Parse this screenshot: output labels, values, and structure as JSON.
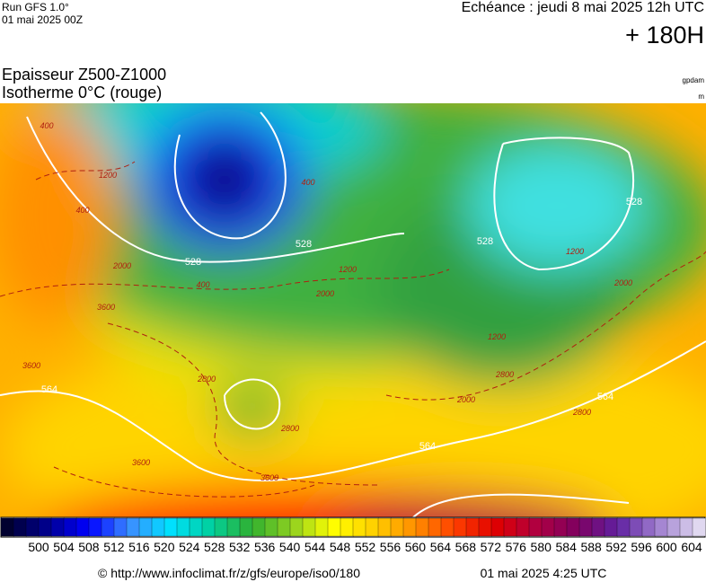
{
  "header": {
    "run": "Run GFS 1.0°",
    "run_date": "01 mai 2025 00Z",
    "valid": "Echéance : jeudi 8 mai 2025 12h UTC",
    "lead": "+ 180H",
    "title": "Epaisseur Z500-Z1000",
    "subtitle": "Isotherme 0°C (rouge)",
    "unit_thickness": "gpdam",
    "unit_iso": "m"
  },
  "map": {
    "thickness_labels": [
      "528",
      "528",
      "528",
      "528",
      "564",
      "564",
      "564"
    ],
    "isotherm_labels": [
      "400",
      "400",
      "400",
      "400",
      "1200",
      "1200",
      "1200",
      "1200",
      "2000",
      "2000",
      "2000",
      "2000",
      "2800",
      "2800",
      "2800",
      "2800",
      "3600",
      "3600",
      "3600",
      "3600"
    ]
  },
  "colorbar": {
    "ticks": [
      500,
      504,
      508,
      512,
      516,
      520,
      524,
      528,
      532,
      536,
      540,
      544,
      548,
      552,
      556,
      560,
      564,
      568,
      572,
      576,
      580,
      584,
      588,
      592,
      596,
      600,
      604
    ]
  },
  "footer": {
    "source": "© http://www.infoclimat.fr/z/gfs/europe/iso0/180",
    "generated": "01 mai 2025  4:25 UTC"
  }
}
